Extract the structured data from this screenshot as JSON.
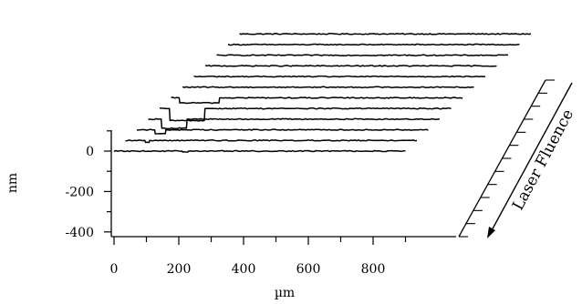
{
  "chart_data": {
    "type": "line",
    "style": "3d-waterfall",
    "title": "",
    "xlabel": "µm",
    "ylabel": "nm",
    "xlim": [
      0,
      900
    ],
    "ylim": [
      -400,
      100
    ],
    "x_ticks": [
      "0",
      "200",
      "400",
      "600",
      "800"
    ],
    "y_ticks": [
      "0",
      "-200",
      "-400"
    ],
    "depth_axis_label": "Laser Fluence",
    "depth_axis_direction": "increasing toward front",
    "series": [
      {
        "step_left": 215,
        "step_right": 395,
        "depth": 0
      },
      {
        "step_left": 175,
        "step_right": 360,
        "depth": 0
      },
      {
        "step_left": 145,
        "step_right": 315,
        "depth": 0
      },
      {
        "step_left": 110,
        "step_right": 260,
        "depth": 0
      },
      {
        "step_left": 70,
        "step_right": 215,
        "depth": 0
      },
      {
        "step_left": 35,
        "step_right": 160,
        "depth": 0
      },
      {
        "step_left": 25,
        "step_right": 150,
        "depth": -25
      },
      {
        "step_left": 30,
        "step_right": 140,
        "depth": -60
      },
      {
        "step_left": 40,
        "step_right": 120,
        "depth": -45
      },
      {
        "step_left": 55,
        "step_right": 90,
        "depth": -20
      },
      {
        "step_left": 60,
        "step_right": 75,
        "depth": -10
      },
      {
        "step_left": 210,
        "step_right": 230,
        "depth": -5
      }
    ]
  }
}
